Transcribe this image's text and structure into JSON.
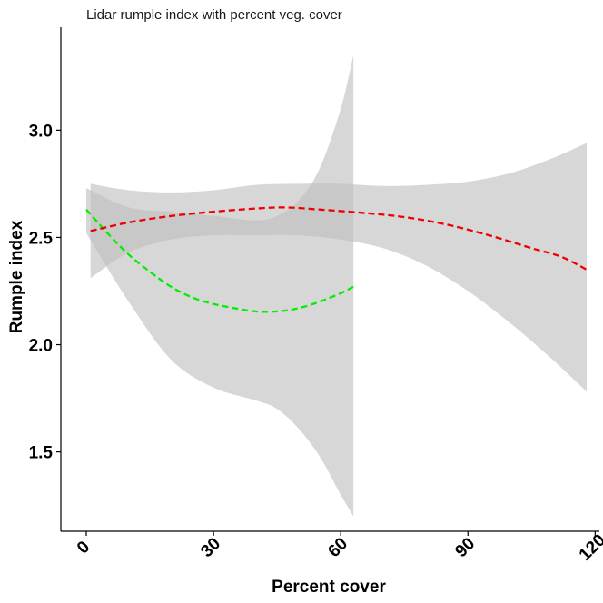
{
  "chart_data": {
    "type": "line",
    "title": "Lidar rumple index with percent veg. cover",
    "xlabel": "Percent cover",
    "ylabel": "Rumple index",
    "xlim": [
      -6,
      121
    ],
    "ylim": [
      1.13,
      3.48
    ],
    "x_ticks": [
      0,
      30,
      60,
      90,
      120
    ],
    "y_ticks": [
      1.5,
      2.0,
      2.5,
      3.0
    ],
    "x_tick_labels": [
      "0",
      "30",
      "60",
      "90",
      "120"
    ],
    "y_tick_labels": [
      "1.5",
      "2.0",
      "2.5",
      "3.0"
    ],
    "grid": false,
    "legend": "none",
    "series": [
      {
        "color": "#00ee00",
        "style": "dashed",
        "band_color": "#bebebe",
        "points": [
          [
            0,
            2.63
          ],
          [
            5,
            2.52
          ],
          [
            10,
            2.42
          ],
          [
            15,
            2.34
          ],
          [
            20,
            2.27
          ],
          [
            25,
            2.22
          ],
          [
            30,
            2.19
          ],
          [
            35,
            2.17
          ],
          [
            40,
            2.155
          ],
          [
            45,
            2.155
          ],
          [
            50,
            2.17
          ],
          [
            55,
            2.2
          ],
          [
            60,
            2.24
          ],
          [
            63,
            2.27
          ]
        ],
        "upper": [
          [
            0,
            2.73
          ],
          [
            10,
            2.64
          ],
          [
            20,
            2.62
          ],
          [
            30,
            2.6
          ],
          [
            40,
            2.58
          ],
          [
            45,
            2.6
          ],
          [
            50,
            2.67
          ],
          [
            55,
            2.82
          ],
          [
            60,
            3.1
          ],
          [
            63,
            3.35
          ]
        ],
        "lower": [
          [
            0,
            2.52
          ],
          [
            10,
            2.2
          ],
          [
            20,
            1.93
          ],
          [
            30,
            1.8
          ],
          [
            40,
            1.74
          ],
          [
            45,
            1.7
          ],
          [
            50,
            1.61
          ],
          [
            55,
            1.48
          ],
          [
            60,
            1.3
          ],
          [
            63,
            1.2
          ]
        ]
      },
      {
        "color": "#ee0000",
        "style": "dashed",
        "band_color": "#bebebe",
        "points": [
          [
            1,
            2.53
          ],
          [
            10,
            2.57
          ],
          [
            20,
            2.6
          ],
          [
            30,
            2.62
          ],
          [
            40,
            2.635
          ],
          [
            47,
            2.64
          ],
          [
            55,
            2.63
          ],
          [
            65,
            2.615
          ],
          [
            75,
            2.595
          ],
          [
            85,
            2.56
          ],
          [
            95,
            2.51
          ],
          [
            105,
            2.45
          ],
          [
            112,
            2.41
          ],
          [
            118,
            2.35
          ]
        ],
        "upper": [
          [
            1,
            2.75
          ],
          [
            10,
            2.72
          ],
          [
            20,
            2.71
          ],
          [
            30,
            2.72
          ],
          [
            40,
            2.745
          ],
          [
            50,
            2.75
          ],
          [
            60,
            2.75
          ],
          [
            70,
            2.74
          ],
          [
            80,
            2.745
          ],
          [
            90,
            2.76
          ],
          [
            100,
            2.8
          ],
          [
            110,
            2.87
          ],
          [
            118,
            2.94
          ]
        ],
        "lower": [
          [
            1,
            2.31
          ],
          [
            10,
            2.43
          ],
          [
            20,
            2.49
          ],
          [
            30,
            2.51
          ],
          [
            40,
            2.51
          ],
          [
            50,
            2.51
          ],
          [
            60,
            2.49
          ],
          [
            70,
            2.45
          ],
          [
            80,
            2.37
          ],
          [
            90,
            2.25
          ],
          [
            100,
            2.1
          ],
          [
            110,
            1.93
          ],
          [
            118,
            1.78
          ]
        ]
      }
    ]
  }
}
